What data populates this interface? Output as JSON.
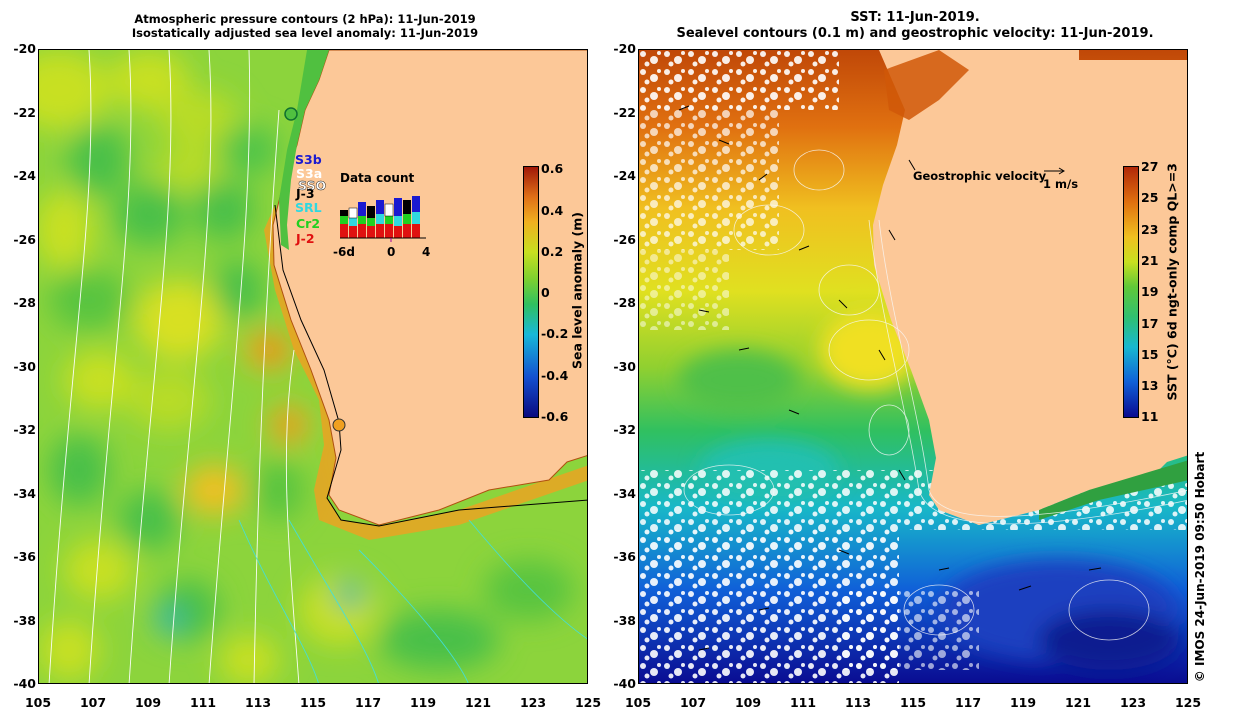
{
  "left_panel": {
    "title_line1": "Atmospheric pressure contours (2 hPa): 11-Jun-2019",
    "title_line2": "Isostatically adjusted sea level anomaly: 11-Jun-2019",
    "colorbar_label": "Sea level anomaly (m)",
    "colorbar_ticks": [
      "0.6",
      "0.4",
      "0.2",
      "0",
      "-0.2",
      "-0.4",
      "-0.6"
    ],
    "satellites": [
      {
        "name": "S3b",
        "color": "#1a1ad0"
      },
      {
        "name": "S3a",
        "color": "#ffffff"
      },
      {
        "name": "SSO",
        "color": "#ffffff"
      },
      {
        "name": "J-3",
        "color": "#000000"
      },
      {
        "name": "SRL",
        "color": "#30d8e0"
      },
      {
        "name": "Cr2",
        "color": "#20d020"
      },
      {
        "name": "J-2",
        "color": "#e01010"
      }
    ],
    "data_count_title": "Data count",
    "data_count_ticks": [
      "-6d",
      "0",
      "4"
    ]
  },
  "right_panel": {
    "title_line1": "SST: 11-Jun-2019.",
    "title_line2": "Sealevel contours (0.1 m) and geostrophic velocity: 11-Jun-2019.",
    "colorbar_label": "SST (°C) 6d ngt-only comp QL>=3",
    "colorbar_ticks": [
      "27",
      "25",
      "23",
      "21",
      "19",
      "17",
      "15",
      "13",
      "11"
    ],
    "velocity_label": "Geostrophic velocity",
    "velocity_scale": "1 m/s",
    "credit": "© IMOS 24-Jun-2019 09:50 Hobart"
  },
  "axes": {
    "y_ticks": [
      "-20",
      "-22",
      "-24",
      "-26",
      "-28",
      "-30",
      "-32",
      "-34",
      "-36",
      "-38",
      "-40"
    ],
    "x_ticks": [
      "105",
      "107",
      "109",
      "111",
      "113",
      "115",
      "117",
      "119",
      "121",
      "123",
      "125"
    ]
  },
  "colors": {
    "land": "#fcc898",
    "sla_ramp": [
      "#0a0a80",
      "#1450d0",
      "#18b8d8",
      "#30c060",
      "#7cd030",
      "#c8e020",
      "#f0b020",
      "#e07018",
      "#a01808"
    ],
    "sst_ramp": [
      "#0a0a90",
      "#1060d8",
      "#18b8d0",
      "#30c070",
      "#60c838",
      "#c8e020",
      "#f0c020",
      "#e07010",
      "#b02808"
    ]
  }
}
